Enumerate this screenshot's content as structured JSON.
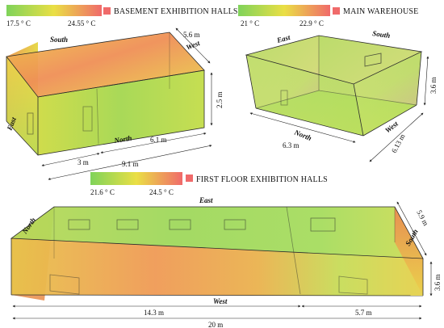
{
  "colors": {
    "cold": "#7fd35a",
    "mid": "#eadf45",
    "hot": "#f06a6a",
    "edge": "#2b2b2b"
  },
  "basement": {
    "title": "BASEMENT EXHIBITION HALLS",
    "scale_min": "17.5 ° C",
    "scale_max": "24.55 ° C",
    "dirs": {
      "south": "South",
      "west": "West",
      "east": "East",
      "north": "North"
    },
    "dims": {
      "depth": "5.6 m",
      "height": "2.5 m",
      "part": "3 m",
      "length_right": "6.1 m",
      "total": "9.1 m"
    }
  },
  "warehouse": {
    "title": "MAIN WAREHOUSE",
    "scale_min": "21 ° C",
    "scale_max": "22.9 ° C",
    "dirs": {
      "east": "East",
      "south": "South",
      "north": "North",
      "west": "West"
    },
    "dims": {
      "height": "3.6 m",
      "length": "6.3  m",
      "width": "6.13 m"
    }
  },
  "first_floor": {
    "title": "FIRST FLOOR EXHIBITION HALLS",
    "scale_min": "21.6 ° C",
    "scale_max": "24.5 ° C",
    "dirs": {
      "east": "East",
      "north": "North",
      "south": "South",
      "west": "West"
    },
    "dims": {
      "depth": "5.9 m",
      "height": "3.6 m",
      "part_left": "14.3 m",
      "part_right": "5.7 m",
      "total": "20  m"
    }
  }
}
